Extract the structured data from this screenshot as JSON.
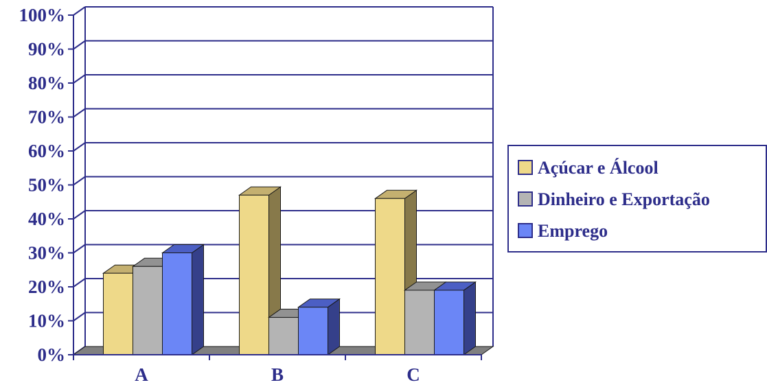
{
  "chart_data": {
    "type": "bar",
    "categories": [
      "A",
      "B",
      "C"
    ],
    "series": [
      {
        "name": "Açúcar e Álcool",
        "values": [
          24,
          47,
          46
        ],
        "color": "#eed989",
        "side_color": "#87794a",
        "top_color": "#c4b070"
      },
      {
        "name": "Dinheiro e Exportação",
        "values": [
          26,
          11,
          19
        ],
        "color": "#b4b4b4",
        "side_color": "#6b6b6b",
        "top_color": "#929292"
      },
      {
        "name": "Emprego",
        "values": [
          30,
          14,
          19
        ],
        "color": "#6b86f6",
        "side_color": "#35408a",
        "top_color": "#4c5fc4"
      }
    ],
    "y_ticks": [
      "0%",
      "10%",
      "20%",
      "30%",
      "40%",
      "50%",
      "60%",
      "70%",
      "80%",
      "90%",
      "100%"
    ],
    "ylim": [
      0,
      100
    ],
    "grid": true,
    "legend_position": "right",
    "axis_color": "#2d2d8a",
    "floor_color": "#808080"
  }
}
